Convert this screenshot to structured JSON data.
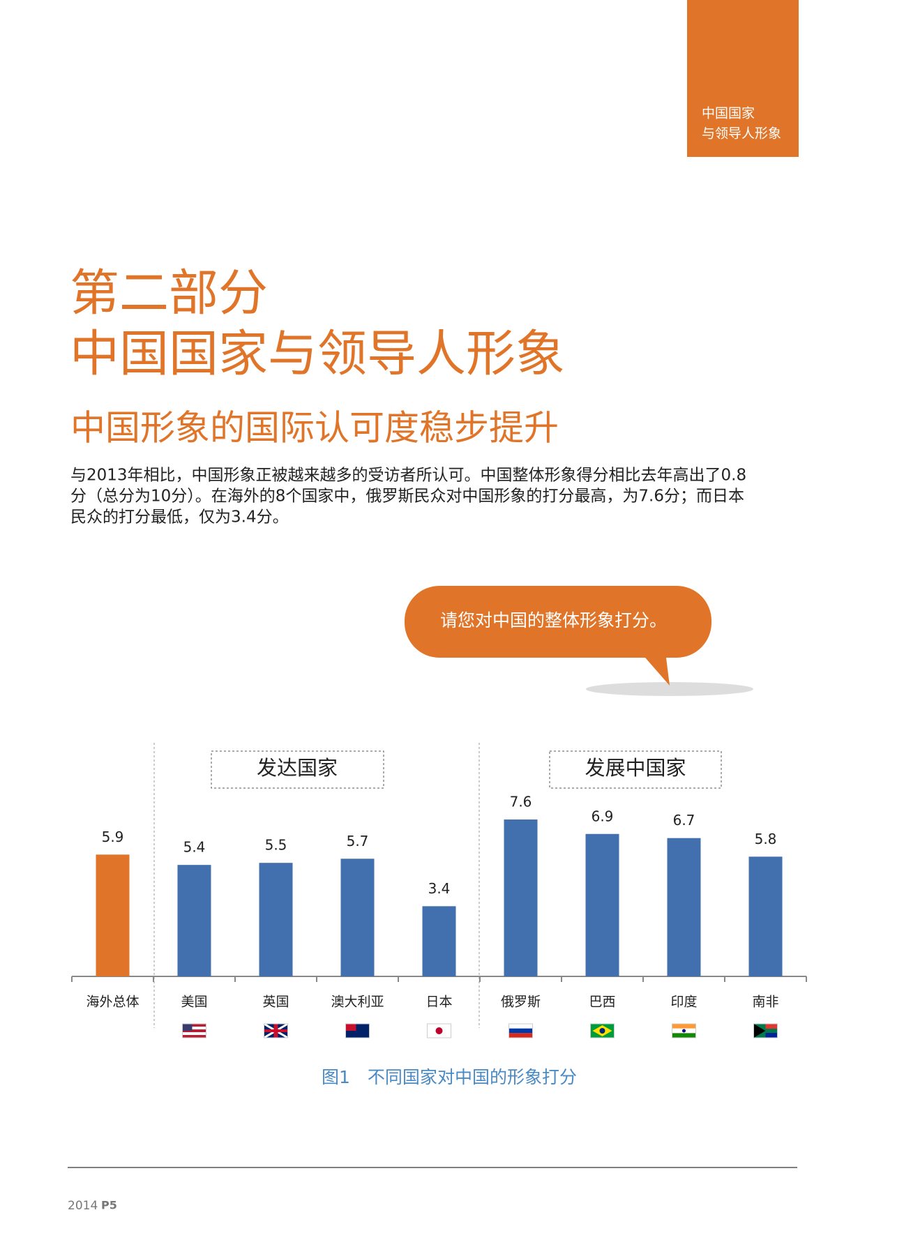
{
  "header": {
    "tab": [
      "中国国家",
      "与领导人形象"
    ]
  },
  "title": [
    "第二部分",
    "中国国家与领导人形象"
  ],
  "subtitle": "中国形象的国际认可度稳步提升",
  "body": [
    "与2013年相比，中国形象正被越来越多的受访者所认可。中国整体形象得分相比去年高出了0.8",
    "分（总分为10分）。在海外的8个国家中，俄罗斯民众对中国形象的打分最高，为7.6分；而日本",
    "民众的打分最低，仅为3.4分。"
  ],
  "bubble": "请您对中国的整体形象打分。",
  "chart_data": {
    "type": "bar",
    "title": "图1　不同国家对中国的形象打分",
    "categories": [
      "海外总体",
      "美国",
      "英国",
      "澳大利亚",
      "日本",
      "俄罗斯",
      "巴西",
      "印度",
      "南非"
    ],
    "values": [
      5.9,
      5.4,
      5.5,
      5.7,
      3.4,
      7.6,
      6.9,
      6.7,
      5.8
    ],
    "colors": [
      "#e07428",
      "#4270ae",
      "#4270ae",
      "#4270ae",
      "#4270ae",
      "#4270ae",
      "#4270ae",
      "#4270ae",
      "#4270ae"
    ],
    "groups": [
      "发达国家",
      "发展中国家"
    ]
  },
  "footer": {
    "year": "2014",
    "page": "P5"
  }
}
